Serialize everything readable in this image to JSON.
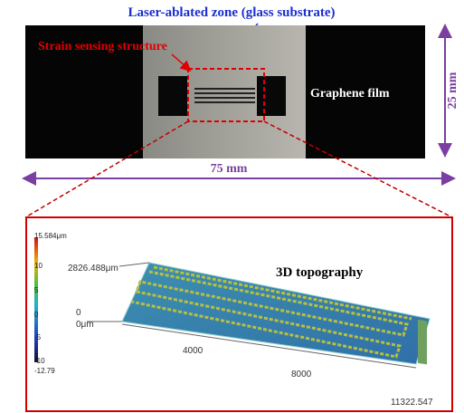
{
  "header": {
    "title": "Laser-ablated zone (glass substrate)"
  },
  "photo": {
    "structure_label": "Strain sensing structure",
    "film_label": "Graphene film",
    "height_label": "25 mm",
    "width_label": "75 mm"
  },
  "topography": {
    "title": "3D topography",
    "colorbar": {
      "max": "15.584μm",
      "ticks": [
        "10",
        "5",
        "0",
        "-5",
        "-10"
      ],
      "min": "-12.79"
    },
    "axes": {
      "y_max": "2826.488μm",
      "z_zero": "0",
      "y_zero": "0μm",
      "x_ticks": [
        "4000",
        "8000"
      ],
      "x_max": "11322.547"
    }
  }
}
